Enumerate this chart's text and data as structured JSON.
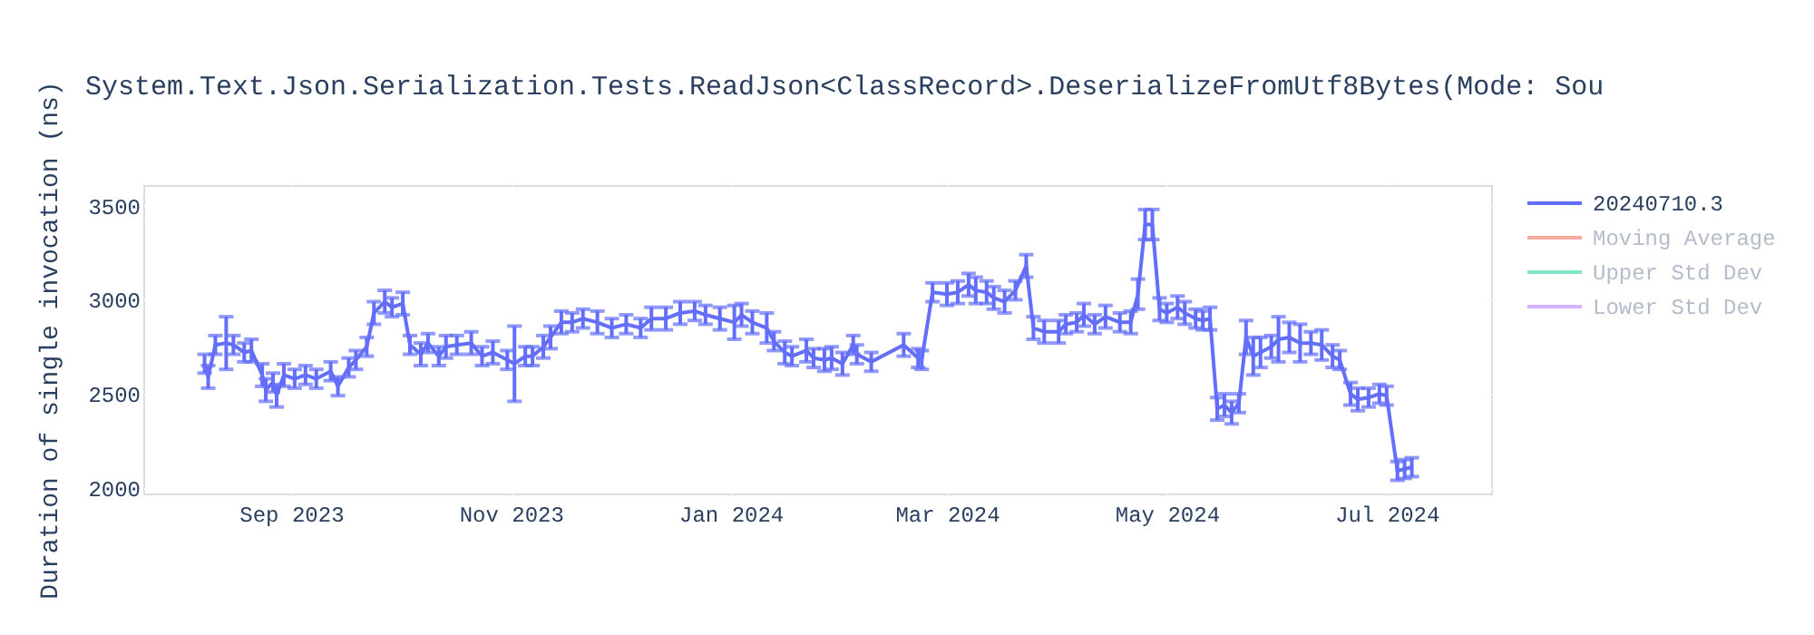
{
  "chart_data": {
    "type": "line",
    "title": "System.Text.Json.Serialization.Tests.ReadJson<ClassRecord>.DeserializeFromUtf8Bytes(Mode: Sou",
    "ylabel": "Duration of single invocation (ns)",
    "xlim": [
      "2023-07-22",
      "2024-07-30"
    ],
    "xticks": [
      {
        "value": "2023-09-01",
        "label": "Sep 2023"
      },
      {
        "value": "2023-11-01",
        "label": "Nov 2023"
      },
      {
        "value": "2024-01-01",
        "label": "Jan 2024"
      },
      {
        "value": "2024-03-01",
        "label": "Mar 2024"
      },
      {
        "value": "2024-05-01",
        "label": "May 2024"
      },
      {
        "value": "2024-07-01",
        "label": "Jul 2024"
      }
    ],
    "ylim": [
      1970,
      3610
    ],
    "yticks": [
      2000,
      2500,
      3000,
      3500
    ],
    "grid": true,
    "legend": "top right",
    "marker": "none",
    "line_style": "solid",
    "series": [
      {
        "name": "20240710.3",
        "color": "#636efa",
        "x": [
          "2023-08-08",
          "2023-08-09",
          "2023-08-11",
          "2023-08-14",
          "2023-08-16",
          "2023-08-19",
          "2023-08-21",
          "2023-08-24",
          "2023-08-25",
          "2023-08-27",
          "2023-08-28",
          "2023-08-30",
          "2023-09-02",
          "2023-09-05",
          "2023-09-08",
          "2023-09-12",
          "2023-09-14",
          "2023-09-17",
          "2023-09-19",
          "2023-09-22",
          "2023-09-24",
          "2023-09-27",
          "2023-09-29",
          "2023-10-02",
          "2023-10-04",
          "2023-10-07",
          "2023-10-09",
          "2023-10-12",
          "2023-10-14",
          "2023-10-17",
          "2023-10-21",
          "2023-10-24",
          "2023-10-27",
          "2023-10-31",
          "2023-11-02",
          "2023-11-05",
          "2023-11-07",
          "2023-11-10",
          "2023-11-12",
          "2023-11-15",
          "2023-11-18",
          "2023-11-21",
          "2023-11-25",
          "2023-11-29",
          "2023-12-03",
          "2023-12-07",
          "2023-12-10",
          "2023-12-14",
          "2023-12-18",
          "2023-12-22",
          "2023-12-25",
          "2023-12-29",
          "2024-01-02",
          "2024-01-04",
          "2024-01-07",
          "2024-01-11",
          "2024-01-13",
          "2024-01-16",
          "2024-01-18",
          "2024-01-22",
          "2024-01-24",
          "2024-01-27",
          "2024-01-29",
          "2024-02-01",
          "2024-02-04",
          "2024-02-05",
          "2024-02-09",
          "2024-02-18",
          "2024-02-22",
          "2024-02-23",
          "2024-02-26",
          "2024-03-01",
          "2024-03-04",
          "2024-03-07",
          "2024-03-09",
          "2024-03-12",
          "2024-03-14",
          "2024-03-17",
          "2024-03-20",
          "2024-03-23",
          "2024-03-25",
          "2024-03-28",
          "2024-04-01",
          "2024-04-03",
          "2024-04-06",
          "2024-04-08",
          "2024-04-11",
          "2024-04-14",
          "2024-04-18",
          "2024-04-21",
          "2024-04-23",
          "2024-04-25",
          "2024-04-27",
          "2024-04-29",
          "2024-05-01",
          "2024-05-04",
          "2024-05-06",
          "2024-05-09",
          "2024-05-11",
          "2024-05-13",
          "2024-05-15",
          "2024-05-17",
          "2024-05-19",
          "2024-05-21",
          "2024-05-23",
          "2024-05-25",
          "2024-05-27",
          "2024-05-30",
          "2024-06-01",
          "2024-06-04",
          "2024-06-07",
          "2024-06-10",
          "2024-06-13",
          "2024-06-16",
          "2024-06-18",
          "2024-06-21",
          "2024-06-23",
          "2024-06-26",
          "2024-06-29",
          "2024-07-01",
          "2024-07-04",
          "2024-07-06",
          "2024-07-08"
        ],
        "values": [
          2660,
          2590,
          2760,
          2770,
          2760,
          2720,
          2730,
          2600,
          2520,
          2560,
          2490,
          2600,
          2580,
          2600,
          2580,
          2620,
          2540,
          2640,
          2680,
          2750,
          2930,
          2990,
          2960,
          2980,
          2760,
          2710,
          2770,
          2700,
          2750,
          2760,
          2770,
          2700,
          2720,
          2680,
          2660,
          2700,
          2700,
          2750,
          2800,
          2880,
          2880,
          2900,
          2880,
          2850,
          2870,
          2850,
          2900,
          2900,
          2930,
          2940,
          2920,
          2900,
          2880,
          2920,
          2880,
          2850,
          2780,
          2720,
          2700,
          2730,
          2690,
          2680,
          2690,
          2660,
          2760,
          2710,
          2670,
          2760,
          2690,
          2680,
          3040,
          3030,
          3040,
          3080,
          3050,
          3040,
          3010,
          2990,
          3050,
          3180,
          2850,
          2830,
          2830,
          2870,
          2880,
          2920,
          2870,
          2910,
          2880,
          2880,
          3030,
          3400,
          3400,
          2950,
          2930,
          2960,
          2930,
          2900,
          2890,
          2900,
          2420,
          2440,
          2400,
          2450,
          2800,
          2700,
          2720,
          2750,
          2790,
          2800,
          2770,
          2770,
          2760,
          2700,
          2680,
          2500,
          2470,
          2480,
          2500,
          2490,
          2090,
          2100,
          2110
        ],
        "errors": [
          50,
          60,
          50,
          140,
          50,
          50,
          60,
          60,
          60,
          50,
          60,
          60,
          50,
          50,
          50,
          50,
          50,
          50,
          50,
          50,
          60,
          60,
          50,
          60,
          50,
          60,
          50,
          50,
          60,
          50,
          60,
          50,
          60,
          50,
          200,
          50,
          50,
          60,
          60,
          60,
          50,
          50,
          60,
          50,
          50,
          50,
          60,
          60,
          60,
          50,
          50,
          60,
          90,
          60,
          60,
          80,
          50,
          60,
          50,
          60,
          50,
          60,
          60,
          60,
          50,
          50,
          50,
          60,
          50,
          50,
          50,
          60,
          60,
          60,
          70,
          60,
          60,
          60,
          50,
          60,
          60,
          60,
          60,
          50,
          50,
          60,
          50,
          60,
          50,
          60,
          80,
          80,
          80,
          60,
          50,
          60,
          60,
          50,
          50,
          60,
          60,
          60,
          60,
          50,
          90,
          100,
          80,
          60,
          120,
          80,
          100,
          60,
          80,
          60,
          50,
          60,
          60,
          50,
          50,
          50,
          50,
          50,
          50
        ]
      },
      {
        "name": "Moving Average",
        "color": "#f8aa9d"
      },
      {
        "name": "Upper Std Dev",
        "color": "#80e5cb"
      },
      {
        "name": "Lower Std Dev",
        "color": "#d4b1fc"
      }
    ]
  }
}
